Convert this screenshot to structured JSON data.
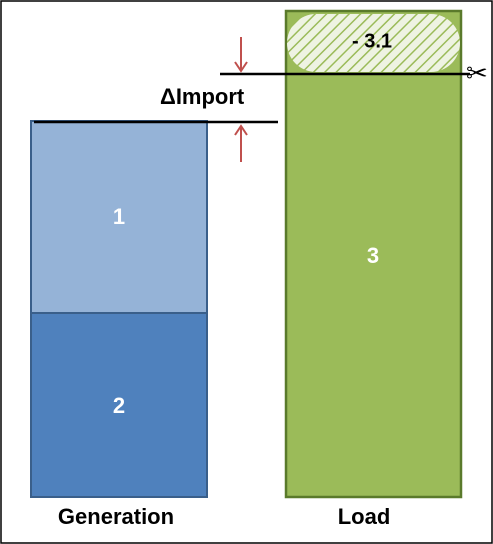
{
  "diagram": {
    "generation": {
      "label": "Generation",
      "segments": [
        {
          "label": "1",
          "color": "#95b3d7"
        },
        {
          "label": "2",
          "color": "#4f81bd"
        }
      ]
    },
    "load": {
      "label": "Load",
      "color": "#9bbb59",
      "segment_label": "3",
      "cut_label": "- 3.1",
      "cut_color": "#d7e4bd"
    },
    "delta_import_label": "ΔImport",
    "arrow_color": "#c0504d",
    "icons": {
      "cut": "scissors-icon",
      "arrow_down": "arrow-down-icon",
      "arrow_up": "arrow-up-icon"
    }
  }
}
